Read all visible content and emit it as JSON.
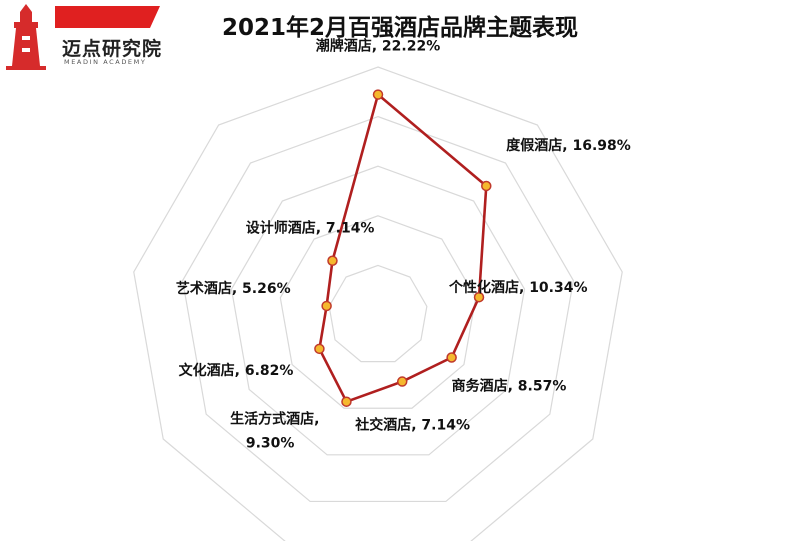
{
  "title": "2021年2月百强酒店品牌主题表现",
  "logo": {
    "name": "迈点研究院",
    "subtitle": "MEADIN ACADEMY"
  },
  "chart_data": {
    "type": "radar",
    "title": "2021年2月百强酒店品牌主题表现",
    "categories": [
      "潮牌酒店",
      "度假酒店",
      "个性化酒店",
      "商务酒店",
      "社交酒店",
      "生活方式酒店",
      "文化酒店",
      "艺术酒店",
      "设计师酒店"
    ],
    "values": [
      22.22,
      16.98,
      10.34,
      8.57,
      7.14,
      9.3,
      6.82,
      5.26,
      7.14
    ],
    "labels": [
      [
        "潮牌酒店, 22.22%"
      ],
      [
        "度假酒店, 16.98%"
      ],
      [
        "个性化酒店, 10.34%"
      ],
      [
        "商务酒店, 8.57%"
      ],
      [
        "社交酒店, 7.14%"
      ],
      [
        "生活方式酒店,",
        "9.30%"
      ],
      [
        "文化酒店, 6.82%"
      ],
      [
        "艺术酒店, 5.26%"
      ],
      [
        "设计师酒店, 7.14%"
      ]
    ],
    "rlim": [
      0,
      25
    ],
    "grid_rings": 5,
    "grid": true,
    "legend": "none",
    "colors": {
      "line": "#B01F1F",
      "marker_fill": "#F5B82E",
      "marker_stroke": "#C0392B",
      "grid": "#D9D9D9"
    }
  }
}
